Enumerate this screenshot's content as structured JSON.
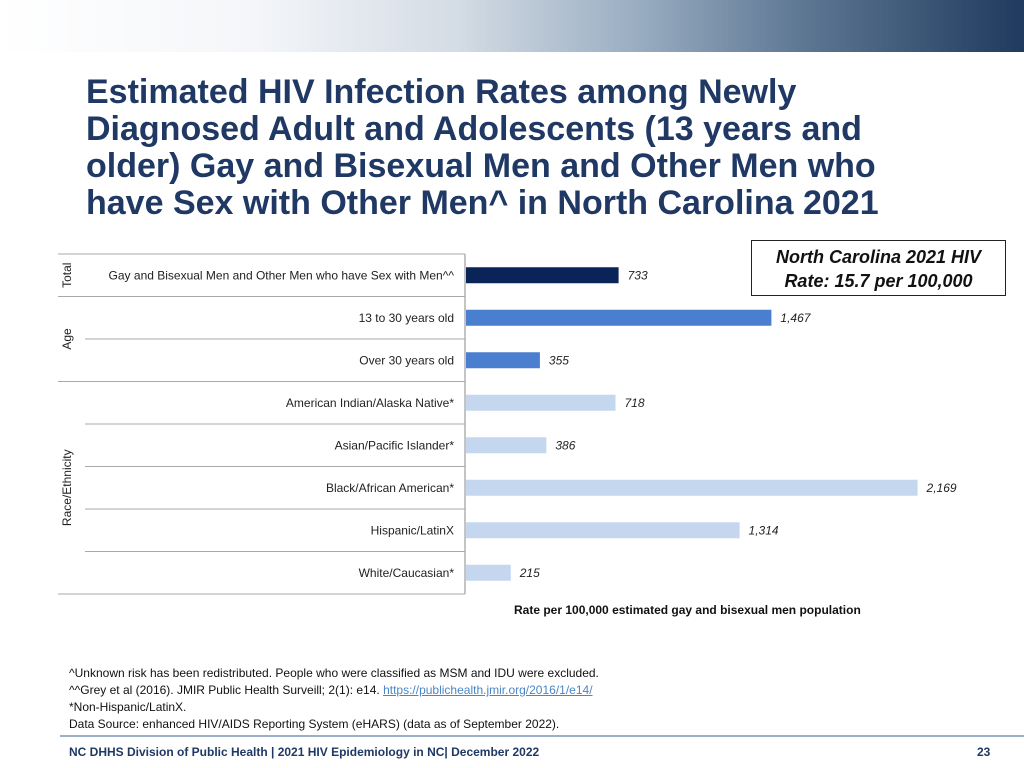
{
  "header": {
    "title": "Estimated HIV Infection Rates among Newly Diagnosed Adult and Adolescents (13 years and older) Gay and Bisexual Men and Other Men who have Sex with Other Men^ in North Carolina 2021"
  },
  "rate_box": {
    "line1": "North Carolina 2021 HIV",
    "line2": "Rate: 15.7 per 100,000"
  },
  "chart_data": {
    "type": "bar",
    "orientation": "horizontal",
    "title": "",
    "xlabel": "Rate per 100,000 estimated gay and bisexual men population",
    "xlim": [
      0,
      2200
    ],
    "grid": false,
    "groups": [
      {
        "name": "Total",
        "start": 0,
        "count": 1
      },
      {
        "name": "Age",
        "start": 1,
        "count": 2
      },
      {
        "name": "Race/Ethnicity",
        "start": 3,
        "count": 5
      }
    ],
    "categories": [
      "Gay and Bisexual Men and Other Men who have Sex with Men^^",
      "13 to 30 years old",
      "Over 30 years old",
      "American Indian/Alaska Native*",
      "Asian/Pacific Islander*",
      "Black/African American*",
      "Hispanic/LatinX",
      "White/Caucasian*"
    ],
    "values": [
      733,
      1467,
      355,
      718,
      386,
      2169,
      1314,
      215
    ],
    "value_labels": [
      "733",
      "1,467",
      "355",
      "718",
      "386",
      "2,169",
      "1,314",
      "215"
    ],
    "colors": [
      "#0b2458",
      "#4a7fcf",
      "#4a7fcf",
      "#c4d7ef",
      "#c4d7ef",
      "#c4d7ef",
      "#c4d7ef",
      "#c4d7ef"
    ]
  },
  "footnotes": {
    "line1": "^Unknown risk has been redistributed. People who were classified as MSM and IDU were excluded.",
    "line2_prefix": "^^Grey et al (2016). JMIR Public Health Surveill; 2(1): e14. ",
    "line2_link": "https://publichealth.jmir.org/2016/1/e14/",
    "line3": "*Non-Hispanic/LatinX.",
    "line4": "Data Source: enhanced HIV/AIDS Reporting System (eHARS) (data as of September 2022)."
  },
  "footer": {
    "left": "NC DHHS Division of Public Health | 2021 HIV Epidemiology in NC| December 2022",
    "page_number": "23"
  }
}
